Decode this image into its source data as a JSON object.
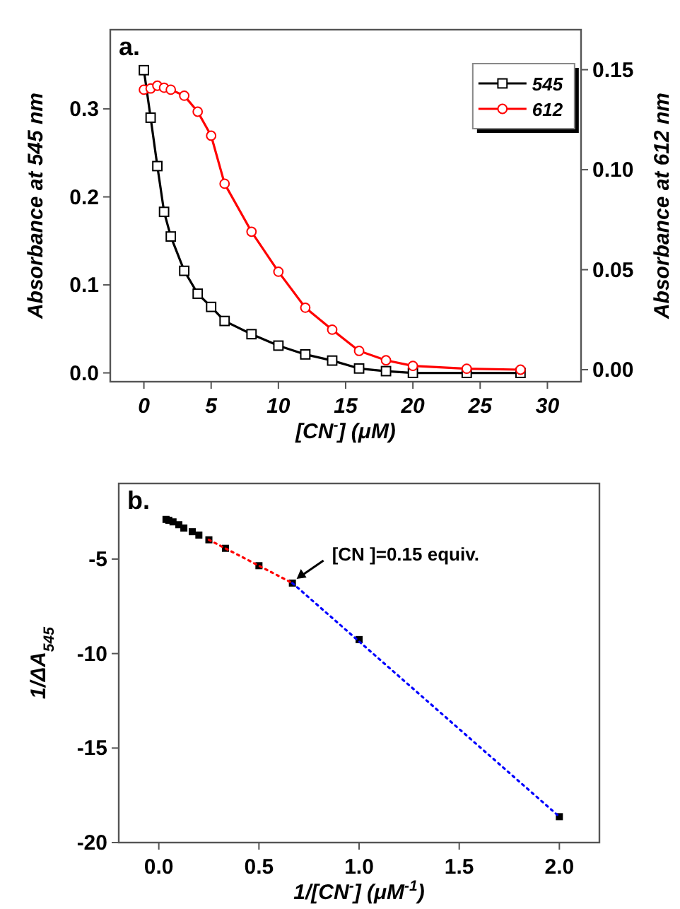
{
  "chart_data": [
    {
      "type": "line",
      "title": "a.",
      "xlabel": "[CN$^{-}$] (μM)",
      "ylabel": "Absorbance at 545 nm",
      "y2label": "Absorbance at 612 nm",
      "xlim": [
        -2.5,
        32.5
      ],
      "xticks": [
        0,
        5,
        10,
        15,
        20,
        25,
        30
      ],
      "ylim": [
        -0.01,
        0.39
      ],
      "yticks": [
        {
          "value": 0,
          "label": "0.0"
        },
        0.1,
        0.2,
        0.3
      ],
      "y2lim": [
        -0.006,
        0.17
      ],
      "y2ticks": [
        {
          "value": 0,
          "label": "0.00"
        },
        0.05,
        {
          "value": 0.1,
          "label": "0.10"
        },
        0.15
      ],
      "legend": "top right",
      "grid": false,
      "line_style": "solid",
      "series": [
        {
          "name": "545",
          "color": "#000000",
          "marker": "square",
          "x": [
            0,
            0.5,
            1,
            1.5,
            2,
            3,
            4,
            5,
            6,
            8,
            10,
            12,
            14,
            16,
            18,
            20,
            24,
            28
          ],
          "values": [
            0.344,
            0.29,
            0.235,
            0.183,
            0.155,
            0.116,
            0.09,
            0.075,
            0.059,
            0.044,
            0.031,
            0.021,
            0.014,
            0.005,
            0.002,
            0.0,
            0.0,
            0.0
          ]
        },
        {
          "name": "612",
          "color": "#ff0000",
          "marker": "circle",
          "axis": "y2",
          "x": [
            0,
            0.5,
            1,
            1.5,
            2,
            3,
            4,
            5,
            6,
            8,
            10,
            12,
            14,
            16,
            18,
            20,
            24,
            28
          ],
          "values": [
            0.14,
            0.1406,
            0.142,
            0.141,
            0.14,
            0.137,
            0.129,
            0.117,
            0.093,
            0.069,
            0.049,
            0.031,
            0.02,
            0.0094,
            0.0047,
            0.0019,
            0.0005,
            0.0
          ]
        }
      ]
    },
    {
      "type": "scatter",
      "title": "b.",
      "xlabel": "1/[CN$^{-}$] (μM$^{-1}$)",
      "ylabel": "1/ΔA$_{545}$",
      "xlim": [
        -0.2,
        2.2
      ],
      "xticks": [
        {
          "value": 0,
          "label": "0.0"
        },
        0.5,
        {
          "value": 1,
          "label": "1.0"
        },
        1.5,
        {
          "value": 2,
          "label": "2.0"
        }
      ],
      "ylim": [
        -20,
        -1
      ],
      "yticks": [
        -20,
        -15,
        -10,
        -5
      ],
      "legend": false,
      "grid": false,
      "annotations": [
        {
          "text": "[CN ]=0.15 equiv.",
          "x": 0.667,
          "y": -6.27
        }
      ],
      "series": [
        {
          "color": "#000000",
          "marker": "square",
          "x": [
            0.036,
            0.05,
            0.071,
            0.1,
            0.125,
            0.167,
            0.2,
            0.25,
            0.333,
            0.5,
            0.667,
            1,
            2
          ],
          "values": [
            -2.9,
            -2.95,
            -3.03,
            -3.18,
            -3.36,
            -3.55,
            -3.73,
            -3.98,
            -4.43,
            -5.35,
            -6.27,
            -9.26,
            -18.63
          ]
        },
        {
          "type": "line",
          "color": "#ff0000",
          "marker": "none",
          "line_style": "dotted",
          "x": [
            0.25,
            0.667
          ],
          "values": [
            -3.98,
            -6.27
          ]
        },
        {
          "type": "line",
          "color": "#0000ff",
          "marker": "none",
          "line_style": "dotted",
          "x": [
            0.667,
            2
          ],
          "values": [
            -6.27,
            -18.63
          ]
        }
      ]
    }
  ]
}
